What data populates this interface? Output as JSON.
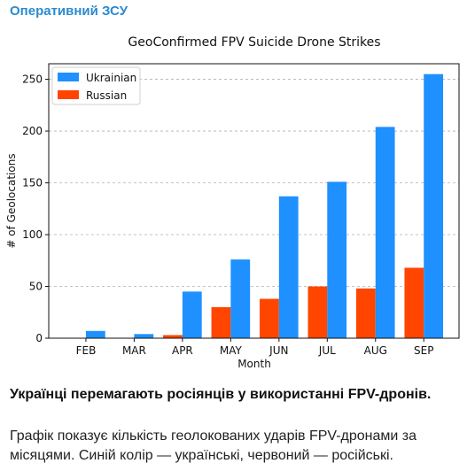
{
  "post": {
    "channel": "Оперативний ЗСУ",
    "title": "Українці перемагають росіянців у використанні FPV-дронів.",
    "body": "Графік показує кількість геолокованих ударів FPV-дронами за місяцями. Синій колір — українські, червоний — російські."
  },
  "chart_data": {
    "type": "bar",
    "title": "GeoConfirmed FPV Suicide Drone Strikes",
    "xlabel": "Month",
    "ylabel": "# of Geolocations",
    "categories": [
      "FEB",
      "MAR",
      "APR",
      "MAY",
      "JUN",
      "JUL",
      "AUG",
      "SEP"
    ],
    "series": [
      {
        "name": "Russian",
        "color": "#ff4500",
        "values": [
          0,
          0,
          3,
          30,
          38,
          50,
          48,
          68
        ]
      },
      {
        "name": "Ukrainian",
        "color": "#1e90ff",
        "values": [
          7,
          4,
          45,
          76,
          137,
          151,
          204,
          255
        ]
      }
    ],
    "legend_order": [
      "Ukrainian",
      "Russian"
    ],
    "ylim": [
      0,
      265
    ],
    "yticks": [
      0,
      50,
      100,
      150,
      200,
      250
    ],
    "grid": "y-dashed",
    "legend_position": "top-left"
  }
}
